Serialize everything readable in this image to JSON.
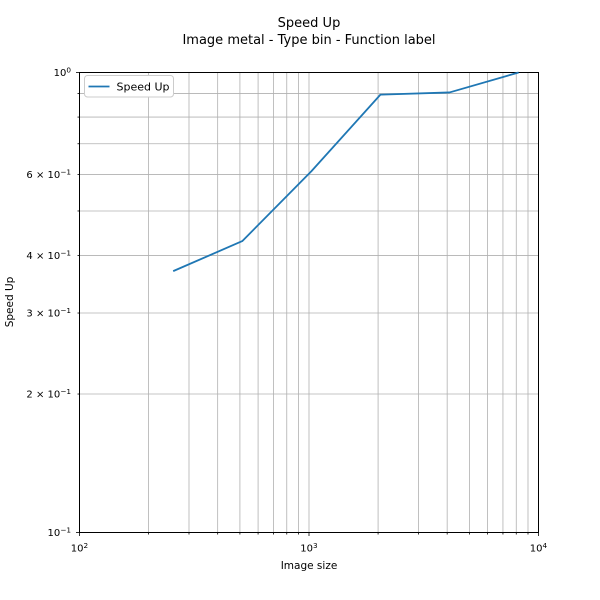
{
  "title": {
    "line1": "Speed Up",
    "line2": "Image metal - Type bin - Function label"
  },
  "chart_data": {
    "type": "line",
    "title": "Speed Up",
    "subtitle": "Image metal - Type bin - Function label",
    "xlabel": "Image size",
    "ylabel": "Speed Up",
    "xscale": "log",
    "yscale": "log",
    "xlim": [
      100,
      10000
    ],
    "ylim": [
      0.1,
      1.0
    ],
    "grid": "both",
    "legend": {
      "label": "Speed Up",
      "position": "upper left"
    },
    "series": [
      {
        "name": "Speed Up",
        "color": "#1f77b4",
        "x": [
          256,
          512,
          1024,
          2048,
          4096,
          8192
        ],
        "y": [
          0.37,
          0.43,
          0.61,
          0.895,
          0.905,
          1.0
        ]
      }
    ],
    "x_major_gridlines": [
      100,
      1000,
      10000
    ],
    "x_minor_gridlines": [
      200,
      300,
      400,
      500,
      600,
      700,
      800,
      900,
      2000,
      3000,
      4000,
      5000,
      6000,
      7000,
      8000,
      9000
    ],
    "y_major_gridlines": [
      0.1,
      1.0
    ],
    "y_minor_gridlines": [
      0.2,
      0.3,
      0.4,
      0.5,
      0.6,
      0.7,
      0.8,
      0.9
    ],
    "x_ticks": [
      {
        "v": 100,
        "pre": "10",
        "sup": "2"
      },
      {
        "v": 1000,
        "pre": "10",
        "sup": "3"
      },
      {
        "v": 10000,
        "pre": "10",
        "sup": "4"
      }
    ],
    "y_ticks": [
      {
        "v": 1.0,
        "pre": "10",
        "sup": "0"
      },
      {
        "v": 0.6,
        "pre": "6 × 10",
        "sup": "−1"
      },
      {
        "v": 0.4,
        "pre": "4 × 10",
        "sup": "−1"
      },
      {
        "v": 0.3,
        "pre": "3 × 10",
        "sup": "−1"
      },
      {
        "v": 0.2,
        "pre": "2 × 10",
        "sup": "−1"
      },
      {
        "v": 0.1,
        "pre": "10",
        "sup": "−1"
      }
    ]
  },
  "colors": {
    "line": "#1f77b4",
    "grid": "#b0b0b0",
    "spine": "#000000",
    "legend_border": "#cccccc",
    "background": "#ffffff"
  }
}
